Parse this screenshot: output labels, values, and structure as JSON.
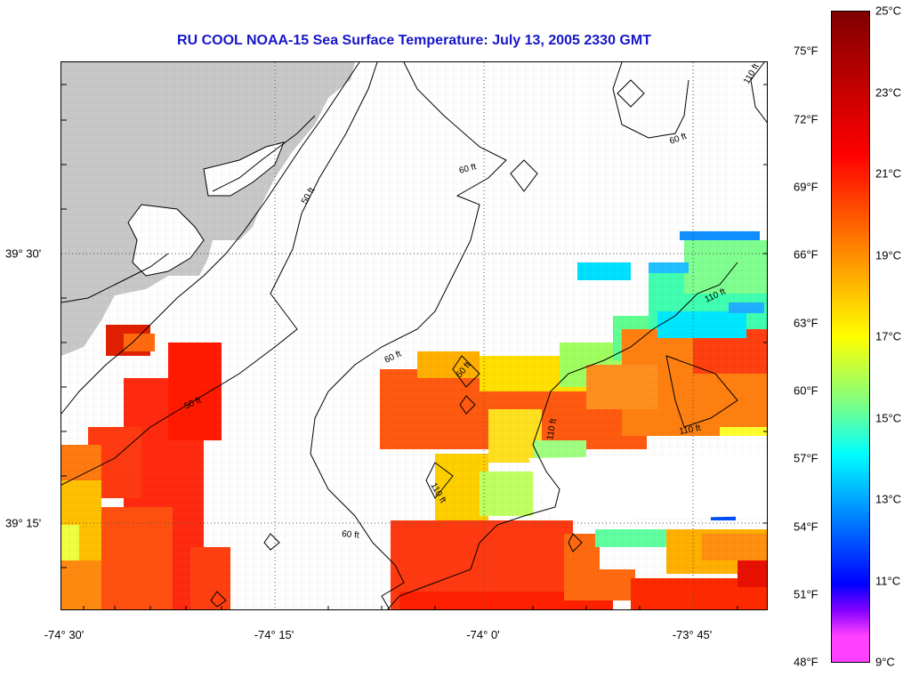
{
  "title": "RU COOL  NOAA-15  Sea Surface Temperature:  July 13, 2005 2330 GMT",
  "longitude_labels": [
    "-74° 30'",
    "-74° 15'",
    "-74° 0'",
    "-73° 45'"
  ],
  "latitude_labels": [
    "39° 30'",
    "39° 15'"
  ],
  "contour_labels": [
    "50 ft",
    "60 ft",
    "110 ft"
  ],
  "colorbar": {
    "fahrenheit_labels": [
      "75°F",
      "72°F",
      "69°F",
      "66°F",
      "63°F",
      "60°F",
      "57°F",
      "54°F",
      "51°F",
      "48°F"
    ],
    "celsius_labels": [
      "25°C",
      "23°C",
      "21°C",
      "19°C",
      "17°C",
      "15°C",
      "13°C",
      "11°C",
      "9°C"
    ]
  },
  "colors": {
    "title": "#1616c8",
    "land": "#c8c8c8",
    "sst_warm": "#ff2000",
    "sst_mid": "#ffa000",
    "sst_cool": "#00e0ff",
    "sst_cold": "#0060ff"
  }
}
